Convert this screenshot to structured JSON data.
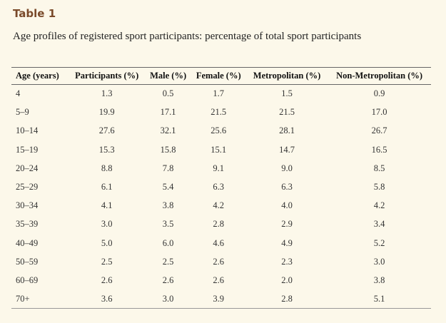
{
  "table_label": "Table 1",
  "caption": "Age profiles of registered sport participants: percentage of total sport participants",
  "columns": [
    "Age (years)",
    "Participants (%)",
    "Male (%)",
    "Female (%)",
    "Metropolitan (%)",
    "Non-Metropolitan (%)"
  ],
  "rows": [
    [
      "4",
      "1.3",
      "0.5",
      "1.7",
      "1.5",
      "0.9"
    ],
    [
      "5–9",
      "19.9",
      "17.1",
      "21.5",
      "21.5",
      "17.0"
    ],
    [
      "10–14",
      "27.6",
      "32.1",
      "25.6",
      "28.1",
      "26.7"
    ],
    [
      "15–19",
      "15.3",
      "15.8",
      "15.1",
      "14.7",
      "16.5"
    ],
    [
      "20–24",
      "8.8",
      "7.8",
      "9.1",
      "9.0",
      "8.5"
    ],
    [
      "25–29",
      "6.1",
      "5.4",
      "6.3",
      "6.3",
      "5.8"
    ],
    [
      "30–34",
      "4.1",
      "3.8",
      "4.2",
      "4.0",
      "4.2"
    ],
    [
      "35–39",
      "3.0",
      "3.5",
      "2.8",
      "2.9",
      "3.4"
    ],
    [
      "40–49",
      "5.0",
      "6.0",
      "4.6",
      "4.9",
      "5.2"
    ],
    [
      "50–59",
      "2.5",
      "2.5",
      "2.6",
      "2.3",
      "3.0"
    ],
    [
      "60–69",
      "2.6",
      "2.6",
      "2.6",
      "2.0",
      "3.8"
    ],
    [
      "70+",
      "3.6",
      "3.0",
      "3.9",
      "2.8",
      "5.1"
    ]
  ]
}
